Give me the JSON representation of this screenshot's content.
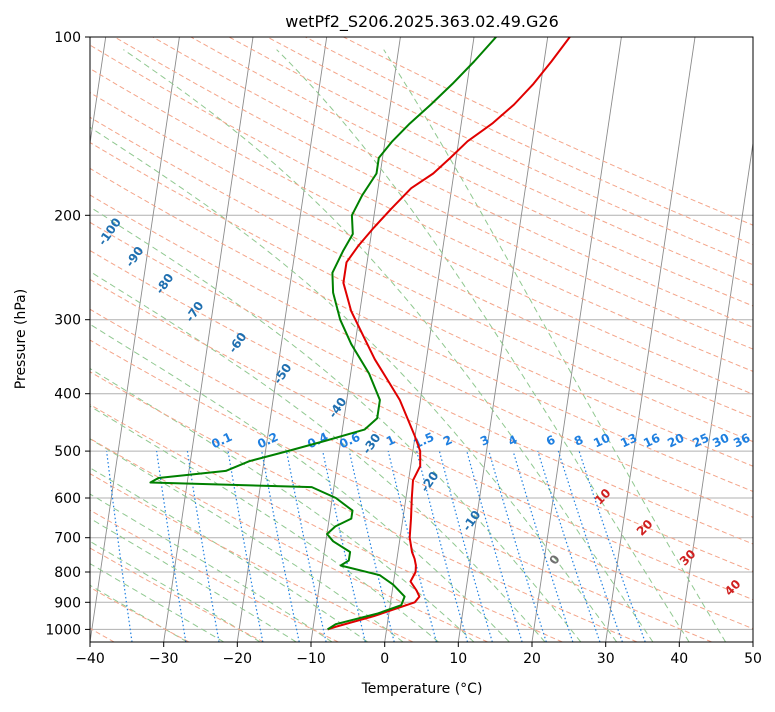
{
  "chart_data": {
    "type": "skew-t",
    "title": "wetPf2_S206.2025.363.02.49.G26",
    "xlabel": "Temperature (°C)",
    "ylabel": "Pressure (hPa)",
    "xlim": [
      -40,
      50
    ],
    "ylim": [
      1050,
      100
    ],
    "x_ticks": [
      -40,
      -30,
      -20,
      -10,
      0,
      10,
      20,
      30,
      40,
      50
    ],
    "x_tick_labels": [
      "−40",
      "−30",
      "−20",
      "−10",
      "0",
      "10",
      "20",
      "30",
      "40",
      "50"
    ],
    "y_ticks": [
      1000,
      900,
      800,
      700,
      600,
      500,
      400,
      300,
      200,
      100
    ],
    "y_tick_labels": [
      "1000",
      "900",
      "800",
      "700",
      "600",
      "500",
      "400",
      "300",
      "200",
      "100"
    ],
    "grid": true,
    "colors": {
      "temperature": "#e00000",
      "dewpoint": "#008000",
      "dry_adiabat": "#f4a58a",
      "moist_adiabat": "#90c890",
      "mixing_ratio": "#1e7fe0",
      "isotherm": "#8c8c8c",
      "adiabat_label": "#1f6fb0",
      "moist_label": "#d02020"
    },
    "series": [
      {
        "name": "Temperature",
        "points": [
          [
            1000,
            -8
          ],
          [
            990,
            -7
          ],
          [
            950,
            -2
          ],
          [
            900,
            3.3
          ],
          [
            880,
            3.8
          ],
          [
            860,
            3.3
          ],
          [
            830,
            2.3
          ],
          [
            800,
            2.8
          ],
          [
            780,
            2.7
          ],
          [
            760,
            2.4
          ],
          [
            740,
            1.9
          ],
          [
            700,
            1.3
          ],
          [
            650,
            1.1
          ],
          [
            600,
            0.8
          ],
          [
            560,
            0.6
          ],
          [
            530,
            1.3
          ],
          [
            500,
            1.0
          ],
          [
            470,
            -0.1
          ],
          [
            440,
            -1.4
          ],
          [
            410,
            -2.8
          ],
          [
            380,
            -4.8
          ],
          [
            350,
            -7.0
          ],
          [
            320,
            -9.0
          ],
          [
            290,
            -11.2
          ],
          [
            260,
            -12.8
          ],
          [
            240,
            -12.8
          ],
          [
            225,
            -11.5
          ],
          [
            210,
            -9.8
          ],
          [
            195,
            -7.8
          ],
          [
            180,
            -5.5
          ],
          [
            170,
            -2.8
          ],
          [
            160,
            -0.8
          ],
          [
            150,
            1.2
          ],
          [
            140,
            4.2
          ],
          [
            130,
            6.8
          ],
          [
            120,
            9.0
          ],
          [
            110,
            11.0
          ],
          [
            100,
            13.0
          ]
        ]
      },
      {
        "name": "Dewpoint",
        "points": [
          [
            1000,
            -8
          ],
          [
            980,
            -7
          ],
          [
            940,
            -1.5
          ],
          [
            910,
            1.5
          ],
          [
            880,
            1.8
          ],
          [
            840,
            0
          ],
          [
            810,
            -2
          ],
          [
            780,
            -7.5
          ],
          [
            765,
            -6.5
          ],
          [
            740,
            -6.5
          ],
          [
            710,
            -9
          ],
          [
            690,
            -10
          ],
          [
            670,
            -9
          ],
          [
            650,
            -7
          ],
          [
            630,
            -7
          ],
          [
            600,
            -9.5
          ],
          [
            575,
            -13
          ],
          [
            565,
            -35
          ],
          [
            555,
            -34
          ],
          [
            540,
            -25
          ],
          [
            520,
            -22
          ],
          [
            500,
            -17
          ],
          [
            480,
            -12
          ],
          [
            460,
            -7
          ],
          [
            440,
            -5.5
          ],
          [
            410,
            -5.5
          ],
          [
            370,
            -7.5
          ],
          [
            330,
            -10.5
          ],
          [
            300,
            -12.5
          ],
          [
            270,
            -14
          ],
          [
            250,
            -14.5
          ],
          [
            230,
            -13.5
          ],
          [
            215,
            -12.5
          ],
          [
            200,
            -13
          ],
          [
            185,
            -12
          ],
          [
            170,
            -10.5
          ],
          [
            160,
            -10.5
          ],
          [
            150,
            -9
          ],
          [
            140,
            -7
          ],
          [
            130,
            -4.5
          ],
          [
            120,
            -2
          ],
          [
            110,
            0.5
          ],
          [
            100,
            3
          ]
        ]
      }
    ],
    "dry_adiabat_labels": [
      "-100",
      "-90",
      "-80",
      "-70",
      "-60",
      "-50",
      "-40",
      "-30",
      "-20",
      "-10",
      "0"
    ],
    "moist_adiabat_labels": [
      "10",
      "20",
      "30",
      "40"
    ],
    "mixing_ratio_labels": [
      "0.1",
      "0.2",
      "0.4",
      "0.6",
      "1",
      "1.5",
      "2",
      "3",
      "4",
      "6",
      "8",
      "10",
      "13",
      "16",
      "20",
      "25",
      "30",
      "36"
    ]
  }
}
